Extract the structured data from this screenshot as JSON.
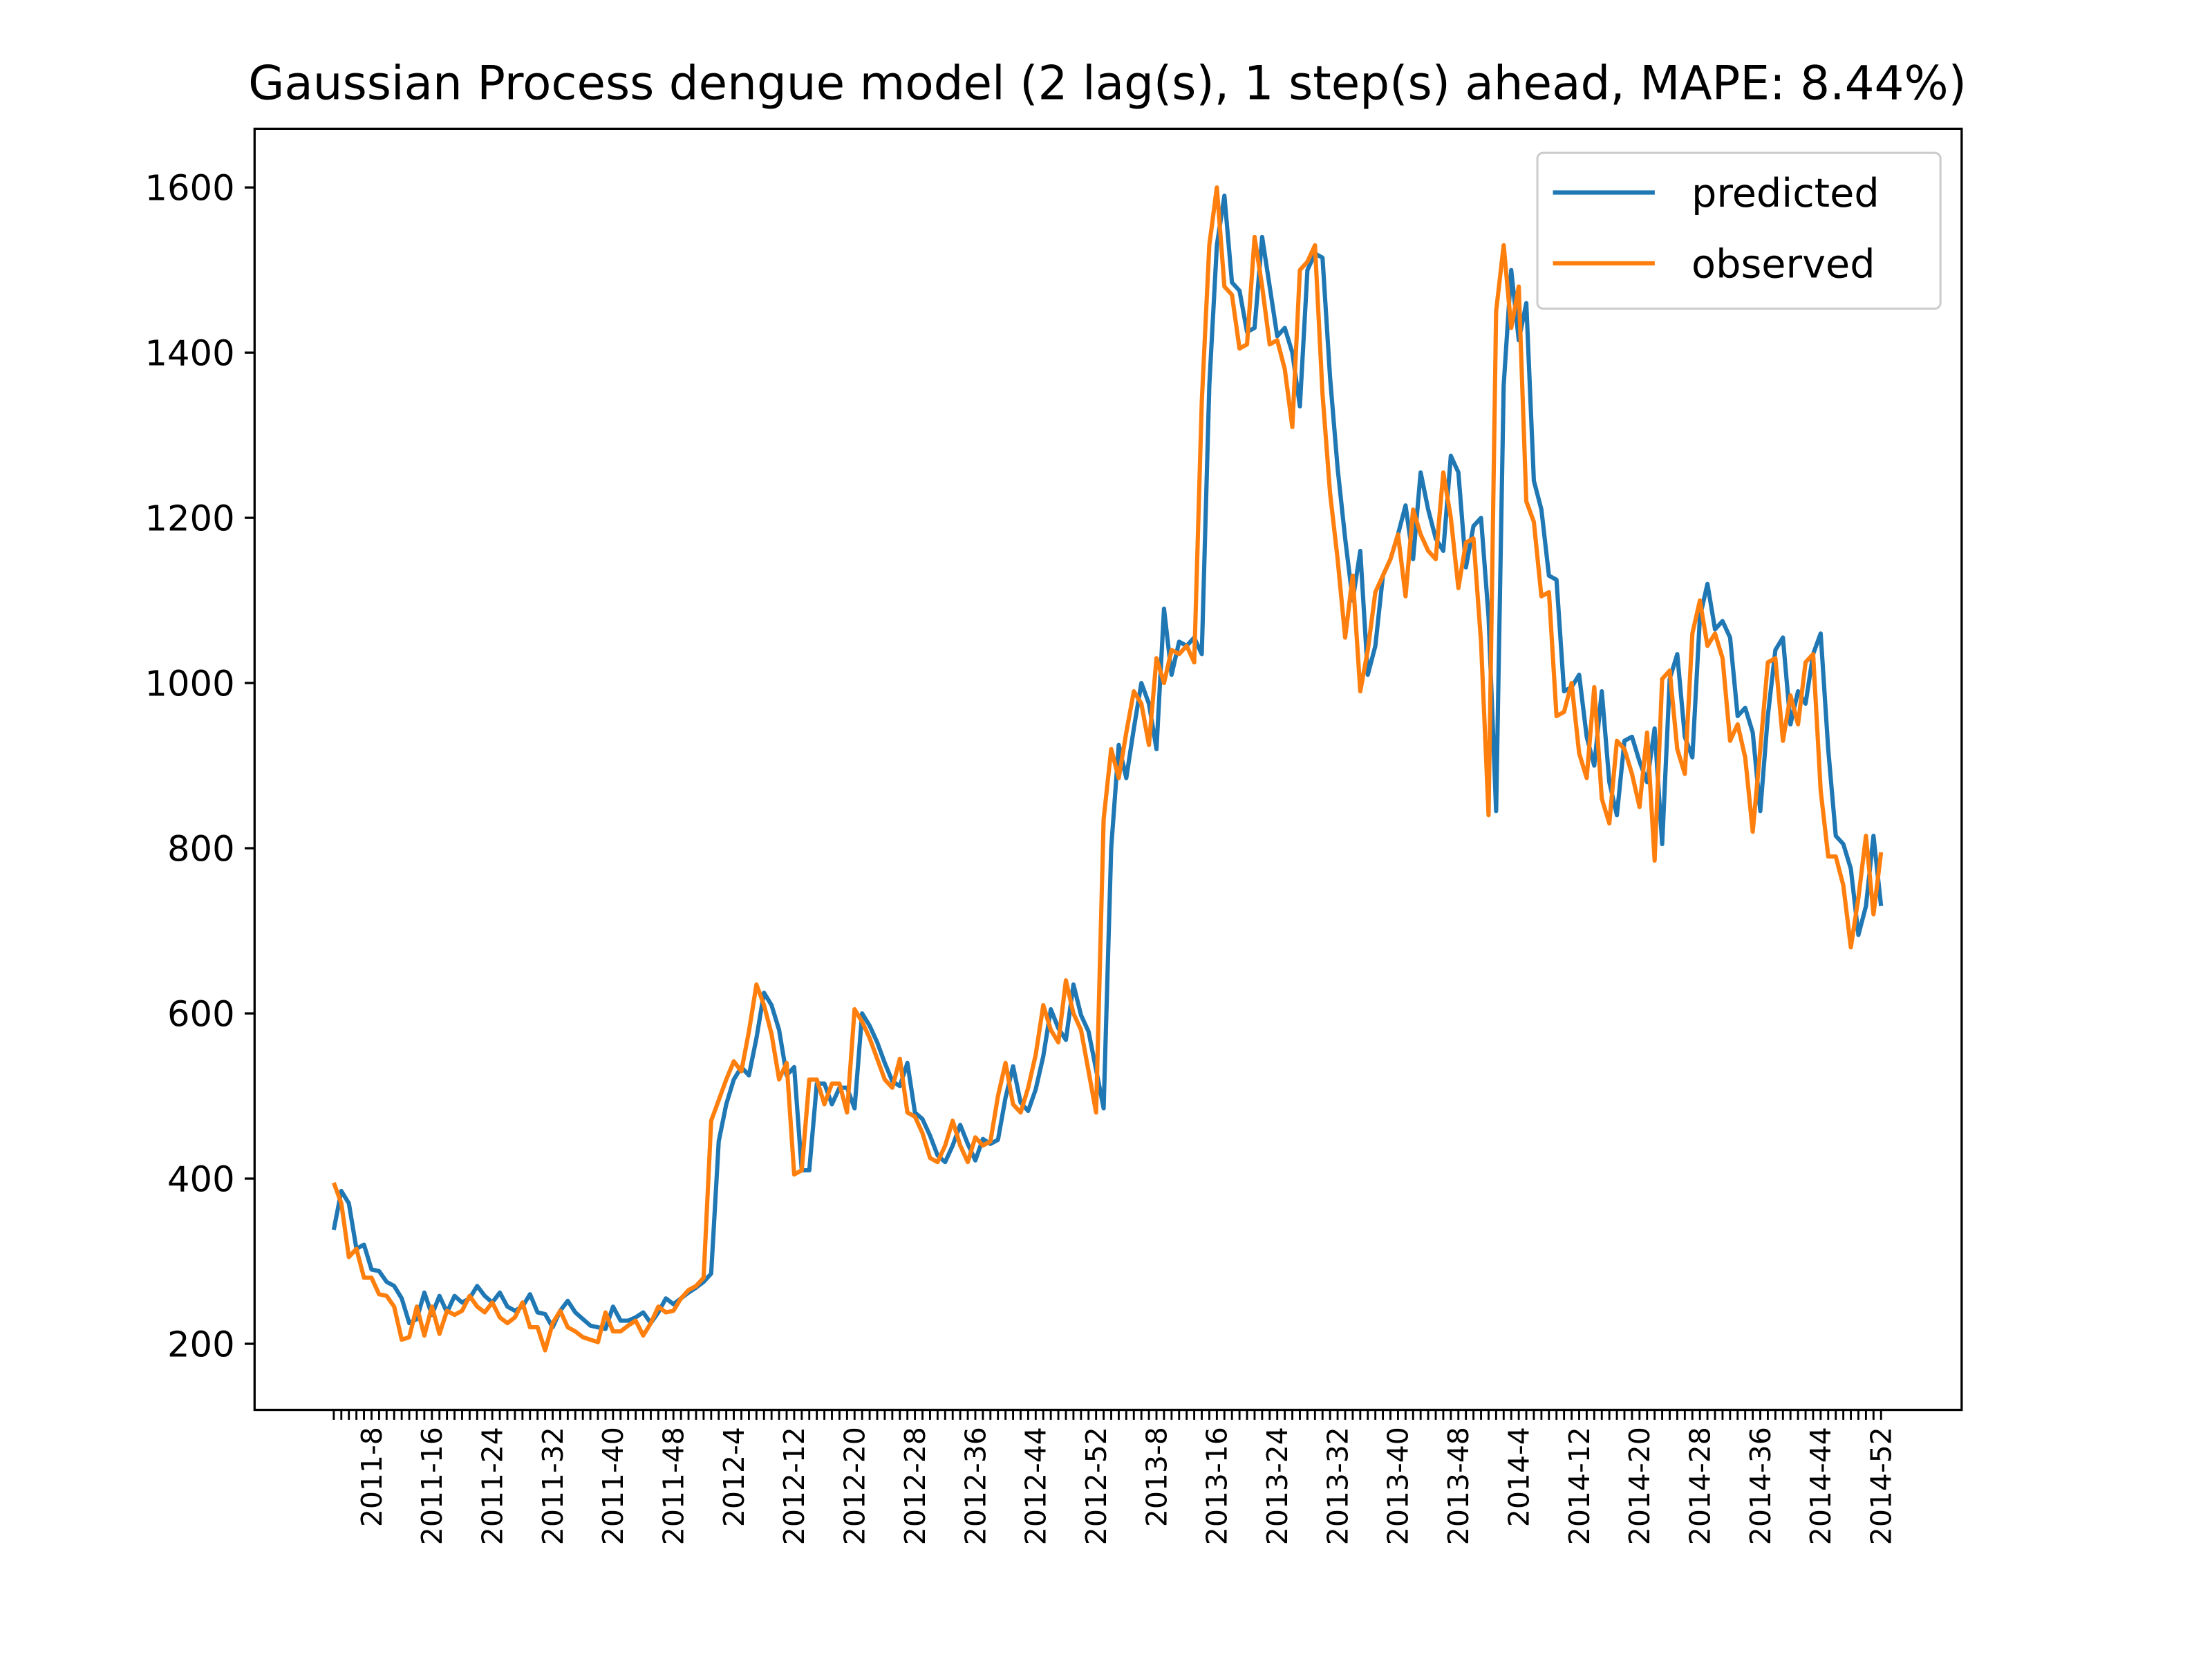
{
  "chart_data": {
    "type": "line",
    "title": "Gaussian Process dengue model (2 lag(s), 1 step(s) ahead, MAPE: 8.44%)",
    "categories": [
      null,
      null,
      null,
      null,
      null,
      "2011-8",
      null,
      null,
      null,
      null,
      null,
      null,
      null,
      "2011-16",
      null,
      null,
      null,
      null,
      null,
      null,
      null,
      "2011-24",
      null,
      null,
      null,
      null,
      null,
      null,
      null,
      "2011-32",
      null,
      null,
      null,
      null,
      null,
      null,
      null,
      "2011-40",
      null,
      null,
      null,
      null,
      null,
      null,
      null,
      "2011-48",
      null,
      null,
      null,
      null,
      null,
      null,
      null,
      "2012-4",
      null,
      null,
      null,
      null,
      null,
      null,
      null,
      "2012-12",
      null,
      null,
      null,
      null,
      null,
      null,
      null,
      "2012-20",
      null,
      null,
      null,
      null,
      null,
      null,
      null,
      "2012-28",
      null,
      null,
      null,
      null,
      null,
      null,
      null,
      "2012-36",
      null,
      null,
      null,
      null,
      null,
      null,
      null,
      "2012-44",
      null,
      null,
      null,
      null,
      null,
      null,
      null,
      "2012-52",
      null,
      null,
      null,
      null,
      null,
      null,
      null,
      "2013-8",
      null,
      null,
      null,
      null,
      null,
      null,
      null,
      "2013-16",
      null,
      null,
      null,
      null,
      null,
      null,
      null,
      "2013-24",
      null,
      null,
      null,
      null,
      null,
      null,
      null,
      "2013-32",
      null,
      null,
      null,
      null,
      null,
      null,
      null,
      "2013-40",
      null,
      null,
      null,
      null,
      null,
      null,
      null,
      "2013-48",
      null,
      null,
      null,
      null,
      null,
      null,
      null,
      "2014-4",
      null,
      null,
      null,
      null,
      null,
      null,
      null,
      "2014-12",
      null,
      null,
      null,
      null,
      null,
      null,
      null,
      "2014-20",
      null,
      null,
      null,
      null,
      null,
      null,
      null,
      "2014-28",
      null,
      null,
      null,
      null,
      null,
      null,
      null,
      "2014-36",
      null,
      null,
      null,
      null,
      null,
      null,
      null,
      "2014-44",
      null,
      null,
      null,
      null,
      null,
      null,
      null,
      "2014-52"
    ],
    "series": [
      {
        "name": "predicted",
        "color": "#1f77b4",
        "values": [
          338,
          385,
          370,
          315,
          320,
          290,
          288,
          275,
          270,
          255,
          225,
          230,
          262,
          235,
          258,
          238,
          258,
          250,
          255,
          270,
          258,
          250,
          262,
          245,
          240,
          245,
          260,
          238,
          236,
          220,
          240,
          252,
          238,
          230,
          222,
          220,
          218,
          245,
          228,
          228,
          232,
          238,
          225,
          238,
          255,
          248,
          255,
          262,
          268,
          275,
          285,
          445,
          490,
          520,
          535,
          525,
          570,
          625,
          610,
          580,
          525,
          535,
          410,
          410,
          515,
          515,
          490,
          510,
          510,
          485,
          600,
          585,
          565,
          540,
          518,
          512,
          540,
          480,
          472,
          452,
          428,
          420,
          440,
          465,
          442,
          422,
          448,
          442,
          447,
          498,
          536,
          492,
          482,
          508,
          548,
          605,
          582,
          568,
          635,
          598,
          578,
          532,
          485,
          800,
          925,
          885,
          945,
          1000,
          975,
          920,
          1090,
          1010,
          1050,
          1045,
          1055,
          1035,
          1360,
          1530,
          1590,
          1485,
          1475,
          1425,
          1430,
          1540,
          1480,
          1420,
          1430,
          1400,
          1335,
          1500,
          1520,
          1515,
          1370,
          1260,
          1175,
          1100,
          1160,
          1010,
          1045,
          1130,
          1150,
          1180,
          1215,
          1150,
          1255,
          1210,
          1175,
          1160,
          1275,
          1255,
          1140,
          1190,
          1200,
          1080,
          845,
          1360,
          1500,
          1415,
          1460,
          1245,
          1210,
          1130,
          1125,
          990,
          995,
          1010,
          935,
          900,
          990,
          880,
          840,
          930,
          935,
          905,
          880,
          945,
          805,
          1005,
          1035,
          935,
          910,
          1080,
          1120,
          1065,
          1075,
          1055,
          960,
          970,
          940,
          845,
          960,
          1040,
          1055,
          950,
          990,
          975,
          1035,
          1060,
          920,
          815,
          805,
          775,
          695,
          730,
          815,
          730
        ]
      },
      {
        "name": "observed",
        "color": "#ff7f0e",
        "values": [
          395,
          370,
          305,
          315,
          280,
          280,
          260,
          258,
          245,
          205,
          208,
          245,
          210,
          245,
          212,
          240,
          235,
          240,
          258,
          245,
          238,
          250,
          232,
          225,
          232,
          250,
          220,
          220,
          192,
          225,
          240,
          220,
          215,
          208,
          205,
          202,
          238,
          215,
          215,
          222,
          228,
          210,
          225,
          245,
          238,
          240,
          255,
          265,
          270,
          280,
          470,
          495,
          520,
          542,
          530,
          578,
          635,
          610,
          575,
          520,
          540,
          405,
          410,
          520,
          520,
          490,
          515,
          515,
          480,
          605,
          590,
          570,
          545,
          520,
          510,
          545,
          480,
          475,
          455,
          425,
          420,
          440,
          470,
          440,
          420,
          450,
          440,
          445,
          500,
          540,
          490,
          480,
          510,
          550,
          610,
          580,
          565,
          640,
          600,
          580,
          530,
          480,
          835,
          920,
          885,
          940,
          990,
          975,
          925,
          1030,
          1000,
          1040,
          1035,
          1045,
          1025,
          1340,
          1530,
          1600,
          1480,
          1470,
          1405,
          1410,
          1540,
          1480,
          1410,
          1415,
          1380,
          1310,
          1500,
          1510,
          1530,
          1350,
          1230,
          1150,
          1055,
          1130,
          990,
          1040,
          1110,
          1130,
          1150,
          1180,
          1105,
          1210,
          1180,
          1160,
          1150,
          1255,
          1200,
          1115,
          1170,
          1175,
          1050,
          840,
          1450,
          1530,
          1430,
          1480,
          1220,
          1195,
          1105,
          1110,
          960,
          965,
          1000,
          915,
          885,
          995,
          860,
          830,
          930,
          920,
          890,
          850,
          940,
          785,
          1005,
          1015,
          920,
          890,
          1060,
          1100,
          1045,
          1060,
          1030,
          930,
          950,
          910,
          820,
          920,
          1025,
          1030,
          930,
          985,
          950,
          1025,
          1035,
          870,
          790,
          790,
          755,
          680,
          740,
          815,
          720,
          795
        ]
      }
    ],
    "ylim": [
      120,
      1671
    ],
    "yticks": [
      200,
      400,
      600,
      800,
      1000,
      1200,
      1400,
      1600
    ],
    "grid": false,
    "legend": "upper right"
  }
}
